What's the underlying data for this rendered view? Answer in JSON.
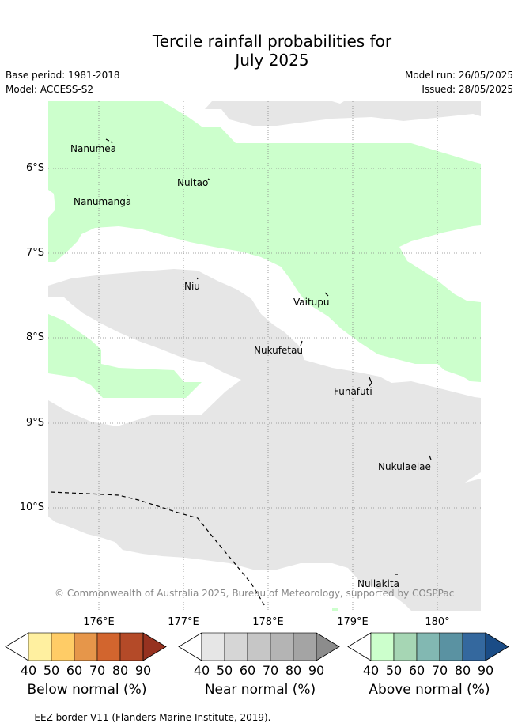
{
  "title_line1": "Tercile rainfall probabilities for",
  "title_line2": "July 2025",
  "meta": {
    "base_period": "Base period: 1981-2018",
    "model": "Model: ACCESS-S2",
    "model_run": "Model run: 26/05/2025",
    "issued": "Issued: 28/05/2025"
  },
  "map": {
    "lat_labels": [
      "6°S",
      "7°S",
      "8°S",
      "9°S",
      "10°S"
    ],
    "lon_labels": [
      "176°E",
      "177°E",
      "178°E",
      "179°E",
      "180°"
    ],
    "islands": [
      {
        "name": "Nanumea"
      },
      {
        "name": "Nuitao"
      },
      {
        "name": "Nanumanga"
      },
      {
        "name": "Niu"
      },
      {
        "name": "Vaitupu"
      },
      {
        "name": "Nukufetau"
      },
      {
        "name": "Funafuti"
      },
      {
        "name": "Nukulaelae"
      },
      {
        "name": "Nuilakita"
      }
    ],
    "colors": {
      "above_40": "#ccffcc",
      "near_40": "#e6e6e6",
      "grid": "#888888"
    }
  },
  "copyright": "© Commonwealth of Australia 2025, Bureau of Meteorology, supported by COSPPac",
  "legends": [
    {
      "title": "Below normal (%)",
      "ticks": [
        "40",
        "50",
        "60",
        "70",
        "80",
        "90"
      ],
      "colors": [
        "#fff0a0",
        "#ffcc66",
        "#e6964a",
        "#d2652e",
        "#b44a28",
        "#963220"
      ]
    },
    {
      "title": "Near normal (%)",
      "ticks": [
        "40",
        "50",
        "60",
        "70",
        "80",
        "90"
      ],
      "colors": [
        "#e6e6e6",
        "#d6d6d6",
        "#c6c6c6",
        "#b4b4b4",
        "#a4a4a4",
        "#8c8c8c"
      ]
    },
    {
      "title": "Above normal (%)",
      "ticks": [
        "40",
        "50",
        "60",
        "70",
        "80",
        "90"
      ],
      "colors": [
        "#ccffcc",
        "#a6d6b4",
        "#82b8b2",
        "#5a92a2",
        "#34689e",
        "#1a4c86"
      ]
    }
  ],
  "footnote": "-- -- -- EEZ border V11 (Flanders Marine Institute, 2019)."
}
